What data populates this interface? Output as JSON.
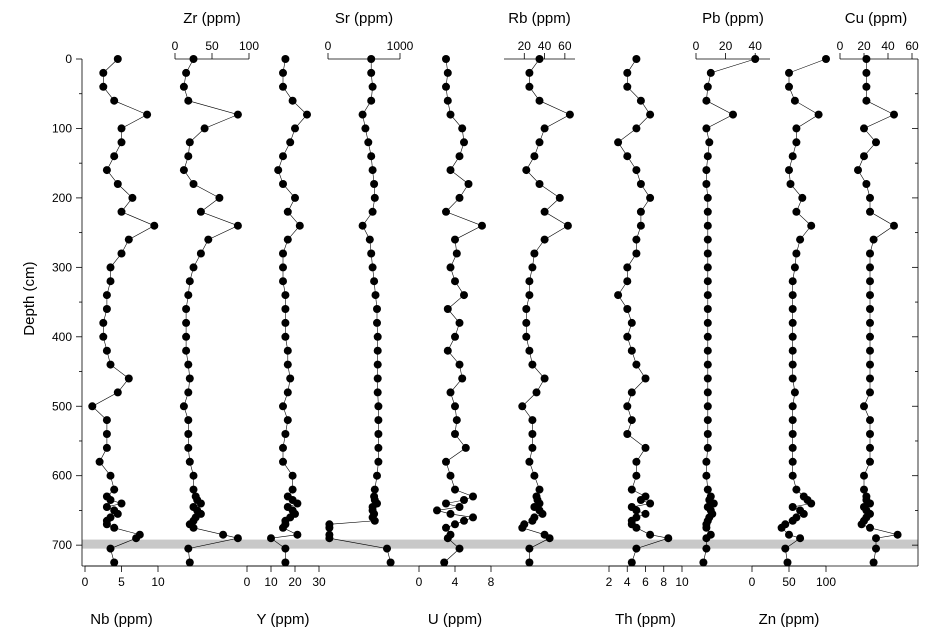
{
  "chart_data": {
    "type": "scatter",
    "y_axis": {
      "label": "Depth (cm)",
      "range": [
        0,
        735
      ],
      "inverted": true,
      "ticks": [
        0,
        100,
        200,
        300,
        400,
        500,
        600,
        700
      ]
    },
    "highlight_band_depth": [
      692,
      705
    ],
    "panels": [
      {
        "name": "Nb (ppm)",
        "axis": "bottom",
        "range": [
          0,
          10
        ],
        "ticks": [
          0,
          5,
          10
        ],
        "depth": [
          0,
          20,
          40,
          60,
          80,
          100,
          120,
          140,
          160,
          180,
          200,
          220,
          240,
          260,
          280,
          300,
          320,
          340,
          360,
          380,
          400,
          420,
          440,
          460,
          480,
          500,
          520,
          540,
          560,
          580,
          600,
          620,
          630,
          635,
          640,
          645,
          650,
          655,
          660,
          665,
          670,
          675,
          685,
          690,
          705,
          725
        ],
        "values": [
          4.5,
          2.5,
          2.5,
          4,
          8.5,
          5,
          5,
          4,
          3,
          4.5,
          6.5,
          5,
          9.5,
          6,
          5,
          3.5,
          3.5,
          3,
          3,
          2.5,
          2.5,
          3,
          3.5,
          6,
          4.5,
          1,
          3,
          3,
          3,
          2,
          3.5,
          4,
          3,
          3.5,
          5,
          3,
          4,
          4.5,
          3.5,
          3,
          3,
          4,
          7.5,
          7,
          3.5,
          4
        ]
      },
      {
        "name": "Zr (ppm)",
        "axis": "top",
        "range": [
          0,
          100
        ],
        "ticks": [
          0,
          50,
          100
        ],
        "depth": [
          0,
          20,
          40,
          60,
          80,
          100,
          120,
          140,
          160,
          180,
          200,
          220,
          240,
          260,
          280,
          300,
          320,
          340,
          360,
          380,
          400,
          420,
          440,
          460,
          480,
          500,
          520,
          540,
          560,
          580,
          600,
          620,
          630,
          635,
          640,
          645,
          650,
          655,
          660,
          665,
          670,
          675,
          685,
          690,
          705,
          725
        ],
        "values": [
          25,
          15,
          12,
          18,
          85,
          40,
          20,
          18,
          12,
          25,
          60,
          35,
          85,
          45,
          35,
          25,
          20,
          18,
          15,
          15,
          15,
          15,
          18,
          20,
          18,
          12,
          18,
          18,
          18,
          20,
          25,
          25,
          28,
          30,
          35,
          25,
          30,
          35,
          28,
          25,
          20,
          25,
          65,
          85,
          18,
          20
        ]
      },
      {
        "name": "Y (ppm)",
        "axis": "bottom",
        "range": [
          0,
          30
        ],
        "ticks": [
          0,
          10,
          20,
          30
        ],
        "depth": [
          0,
          20,
          40,
          60,
          80,
          100,
          120,
          140,
          160,
          180,
          200,
          220,
          240,
          260,
          280,
          300,
          320,
          340,
          360,
          380,
          400,
          420,
          440,
          460,
          480,
          500,
          520,
          540,
          560,
          580,
          600,
          620,
          630,
          635,
          640,
          645,
          650,
          655,
          660,
          665,
          670,
          675,
          685,
          690,
          705,
          725
        ],
        "values": [
          16,
          15,
          15,
          19,
          25,
          20,
          18,
          15,
          13,
          15,
          20,
          17,
          22,
          17,
          15,
          15,
          15,
          16,
          16,
          16,
          16,
          17,
          17,
          18,
          17,
          15,
          17,
          16,
          15,
          15,
          19,
          19,
          17,
          19,
          21,
          17,
          19,
          20,
          18,
          16,
          16,
          15,
          21,
          10,
          16,
          16
        ]
      },
      {
        "name": "Sr (ppm)",
        "axis": "top",
        "range": [
          0,
          1000
        ],
        "ticks": [
          0,
          1000
        ],
        "depth": [
          0,
          20,
          40,
          60,
          80,
          100,
          120,
          140,
          160,
          180,
          200,
          220,
          240,
          260,
          280,
          300,
          320,
          340,
          360,
          380,
          400,
          420,
          440,
          460,
          480,
          500,
          520,
          540,
          560,
          580,
          600,
          620,
          630,
          635,
          640,
          645,
          650,
          655,
          660,
          665,
          670,
          675,
          685,
          690,
          705,
          725
        ],
        "values": [
          600,
          600,
          620,
          600,
          480,
          520,
          560,
          600,
          620,
          640,
          650,
          620,
          480,
          580,
          600,
          620,
          640,
          660,
          680,
          680,
          690,
          690,
          690,
          690,
          690,
          700,
          700,
          700,
          700,
          700,
          680,
          650,
          640,
          650,
          680,
          620,
          620,
          640,
          620,
          650,
          20,
          20,
          20,
          20,
          820,
          870
        ]
      },
      {
        "name": "U (ppm)",
        "axis": "bottom",
        "range": [
          0,
          8
        ],
        "ticks": [
          0,
          4,
          8
        ],
        "depth": [
          0,
          20,
          40,
          60,
          80,
          100,
          120,
          140,
          160,
          180,
          200,
          220,
          240,
          260,
          280,
          300,
          320,
          340,
          360,
          380,
          400,
          420,
          440,
          460,
          480,
          500,
          520,
          540,
          560,
          580,
          600,
          620,
          630,
          635,
          640,
          645,
          650,
          655,
          660,
          665,
          670,
          675,
          685,
          690,
          705,
          725
        ],
        "values": [
          3,
          3.2,
          3,
          3.2,
          3.5,
          4.8,
          5,
          4.5,
          3.5,
          5.5,
          4.5,
          3,
          7,
          4,
          4.2,
          3.5,
          4,
          5,
          3.2,
          4.5,
          4,
          3.2,
          4.5,
          4.8,
          3.5,
          4,
          4.2,
          4,
          5.2,
          3,
          3.5,
          4,
          6,
          5,
          3,
          4.5,
          2,
          3.5,
          6,
          5,
          4,
          3,
          3.5,
          3.2,
          4.5,
          2.8
        ]
      },
      {
        "name": "Rb (ppm)",
        "axis": "top",
        "range": [
          0,
          70
        ],
        "ticks": [
          20,
          40,
          60
        ],
        "depth": [
          0,
          20,
          40,
          60,
          80,
          100,
          120,
          140,
          160,
          180,
          200,
          220,
          240,
          260,
          280,
          300,
          320,
          340,
          360,
          380,
          400,
          420,
          440,
          460,
          480,
          500,
          520,
          540,
          560,
          580,
          600,
          620,
          630,
          635,
          640,
          645,
          650,
          655,
          660,
          665,
          670,
          675,
          685,
          690,
          705,
          725
        ],
        "values": [
          35,
          25,
          25,
          35,
          65,
          40,
          35,
          30,
          22,
          35,
          55,
          40,
          63,
          40,
          30,
          28,
          25,
          25,
          22,
          22,
          22,
          25,
          28,
          40,
          32,
          18,
          28,
          28,
          28,
          25,
          30,
          35,
          32,
          33,
          35,
          30,
          35,
          38,
          30,
          28,
          20,
          18,
          40,
          45,
          25,
          25
        ]
      },
      {
        "name": "Th (ppm)",
        "axis": "bottom",
        "range": [
          2,
          10
        ],
        "ticks": [
          2,
          4,
          6,
          8,
          10
        ],
        "depth": [
          0,
          20,
          40,
          60,
          80,
          100,
          120,
          140,
          160,
          180,
          200,
          220,
          240,
          260,
          280,
          300,
          320,
          340,
          360,
          380,
          400,
          420,
          440,
          460,
          480,
          500,
          520,
          540,
          560,
          580,
          600,
          620,
          630,
          635,
          640,
          645,
          650,
          655,
          660,
          665,
          670,
          675,
          685,
          690,
          705,
          725
        ],
        "values": [
          5,
          4,
          4,
          5.5,
          6.5,
          5,
          3,
          4,
          5,
          5.5,
          6.5,
          5.5,
          5.5,
          5,
          5,
          4,
          4,
          3,
          4,
          4.5,
          4,
          4.5,
          5,
          6,
          4.5,
          4,
          4.5,
          4,
          6,
          5,
          5,
          4.5,
          6,
          5.5,
          6.5,
          4.5,
          5,
          6,
          5,
          4.5,
          4.5,
          5,
          6.5,
          8.5,
          5,
          4.5
        ]
      },
      {
        "name": "Pb (ppm)",
        "axis": "top",
        "range": [
          0,
          50
        ],
        "ticks": [
          0,
          20,
          40
        ],
        "depth": [
          0,
          20,
          40,
          60,
          80,
          100,
          120,
          140,
          160,
          180,
          200,
          220,
          240,
          260,
          280,
          300,
          320,
          340,
          360,
          380,
          400,
          420,
          440,
          460,
          480,
          500,
          520,
          540,
          560,
          580,
          600,
          620,
          630,
          635,
          640,
          645,
          650,
          655,
          660,
          665,
          670,
          675,
          685,
          690,
          705,
          725
        ],
        "values": [
          40,
          10,
          8,
          7,
          25,
          7,
          9,
          8,
          7,
          7,
          8,
          8,
          8,
          8,
          8,
          8,
          8,
          8,
          8,
          8,
          8,
          8,
          8,
          8,
          8,
          8,
          8,
          8,
          8,
          7,
          7,
          8,
          10,
          9,
          12,
          8,
          10,
          11,
          9,
          8,
          7,
          7,
          10,
          7,
          7,
          5
        ]
      },
      {
        "name": "Zn (ppm)",
        "axis": "bottom",
        "range": [
          0,
          100
        ],
        "ticks": [
          0,
          50,
          100
        ],
        "depth": [
          0,
          20,
          40,
          60,
          80,
          100,
          120,
          140,
          160,
          180,
          200,
          220,
          240,
          260,
          280,
          300,
          320,
          340,
          360,
          380,
          400,
          420,
          440,
          460,
          480,
          500,
          520,
          540,
          560,
          580,
          600,
          620,
          630,
          635,
          640,
          645,
          650,
          655,
          660,
          665,
          670,
          675,
          685,
          690,
          705,
          725
        ],
        "values": [
          100,
          50,
          50,
          58,
          90,
          60,
          60,
          55,
          50,
          52,
          68,
          60,
          80,
          65,
          60,
          58,
          55,
          55,
          55,
          55,
          55,
          55,
          55,
          55,
          58,
          55,
          55,
          55,
          55,
          55,
          55,
          60,
          70,
          75,
          80,
          55,
          65,
          70,
          60,
          55,
          45,
          40,
          50,
          65,
          45,
          48
        ]
      },
      {
        "name": "Cu (ppm)",
        "axis": "top",
        "range": [
          0,
          60
        ],
        "ticks": [
          0,
          20,
          40,
          60
        ],
        "depth": [
          0,
          20,
          40,
          60,
          80,
          100,
          120,
          140,
          160,
          180,
          200,
          220,
          240,
          260,
          280,
          300,
          320,
          340,
          360,
          380,
          400,
          420,
          440,
          460,
          480,
          500,
          520,
          540,
          560,
          580,
          600,
          620,
          630,
          635,
          640,
          645,
          650,
          655,
          660,
          665,
          670,
          675,
          685,
          690,
          705,
          725
        ],
        "values": [
          22,
          22,
          22,
          22,
          45,
          20,
          30,
          20,
          15,
          22,
          25,
          25,
          45,
          28,
          25,
          25,
          25,
          25,
          25,
          25,
          25,
          25,
          25,
          25,
          25,
          20,
          25,
          25,
          25,
          25,
          20,
          20,
          22,
          22,
          25,
          20,
          22,
          25,
          22,
          20,
          18,
          25,
          48,
          30,
          30,
          28
        ]
      }
    ]
  }
}
